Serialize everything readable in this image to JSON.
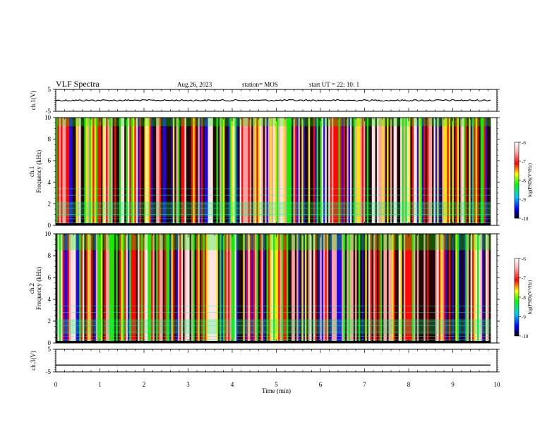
{
  "header": {
    "title": "VLF Spectra",
    "date": "Aug.26, 2023",
    "station": "station= MOS",
    "start": "start  UT =   22: 10: 1"
  },
  "chart_data": [
    {
      "type": "line",
      "panel": "ch1-waveform",
      "ylabel": "ch.1(V)",
      "ylim": [
        -5,
        5
      ],
      "yticks": [
        "5",
        "-5"
      ],
      "xlim": [
        0,
        10
      ],
      "series": [
        {
          "values": [
            0
          ]
        }
      ]
    },
    {
      "type": "heatmap",
      "panel": "ch1-spectrogram",
      "ylabel": "ch.1\nFrequency (kHz)",
      "ylim": [
        0,
        10
      ],
      "yticks": [
        "0",
        "2",
        "4",
        "6",
        "8",
        "10"
      ],
      "xlim": [
        0,
        10
      ],
      "colorbar": {
        "label": "log(PSD)(V²/Hz)",
        "range": [
          -10,
          -6
        ],
        "ticks": [
          "-6",
          "-7",
          "-8",
          "-9",
          "-10"
        ]
      }
    },
    {
      "type": "heatmap",
      "panel": "ch2-spectrogram",
      "ylabel": "ch.2\nFrequency (kHz)",
      "ylim": [
        0,
        10
      ],
      "yticks": [
        "0",
        "2",
        "4",
        "6",
        "8",
        "10"
      ],
      "xlim": [
        0,
        10
      ],
      "colorbar": {
        "label": "log(PSD)(V²/Hz)",
        "range": [
          -10,
          -6
        ],
        "ticks": [
          "-6",
          "-7",
          "-8",
          "-9",
          "-10"
        ]
      }
    },
    {
      "type": "line",
      "panel": "ch3-waveform",
      "ylabel": "ch.3(V)",
      "ylim": [
        -5,
        5
      ],
      "yticks": [
        "5",
        "-5"
      ],
      "xlim": [
        0,
        10
      ],
      "xlabel": "Time  (min)",
      "xticks": [
        "0",
        "1",
        "2",
        "3",
        "4",
        "5",
        "6",
        "7",
        "8",
        "9",
        "10"
      ],
      "series": [
        {
          "values": [
            -2
          ]
        }
      ]
    }
  ]
}
